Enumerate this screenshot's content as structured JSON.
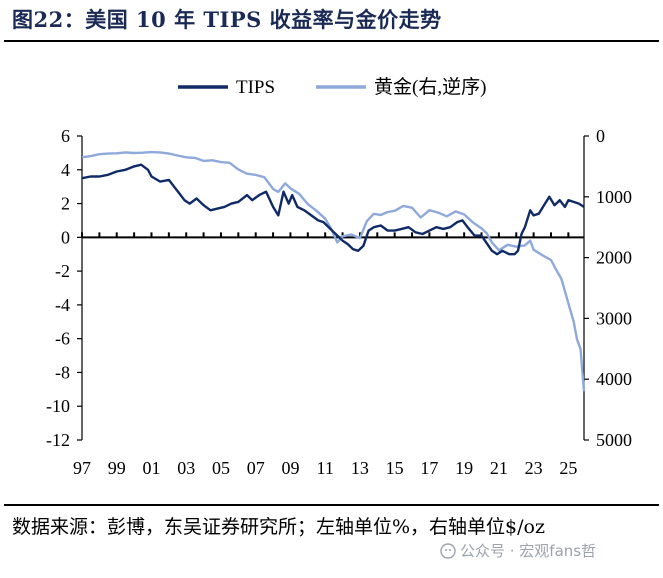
{
  "title": "图22：美国 10 年 TIPS 收益率与金价走势",
  "source_line": "数据来源：彭博，东吴证券研究所；左轴单位%，右轴单位$/oz",
  "watermark": "公众号 · 宏观fans哲",
  "colors": {
    "tips": "#0f2a66",
    "gold": "#8ea9da",
    "title": "#1a2a55"
  },
  "chart_data": {
    "type": "line",
    "legend": [
      "TIPS",
      "黄金(右,逆序)"
    ],
    "legend_position": "top-right",
    "x_ticks": [
      "97",
      "99",
      "01",
      "03",
      "05",
      "07",
      "09",
      "11",
      "13",
      "15",
      "17",
      "19",
      "21",
      "23",
      "25"
    ],
    "x_range": [
      1997,
      2025.9
    ],
    "left_axis": {
      "min": -12,
      "max": 6,
      "ticks": [
        6,
        4,
        2,
        0,
        -2,
        -4,
        -6,
        -8,
        -10,
        -12
      ],
      "unit": "%"
    },
    "right_axis": {
      "min": 0,
      "max": 5000,
      "inverted": true,
      "ticks": [
        0,
        1000,
        2000,
        3000,
        4000,
        5000
      ],
      "unit": "$/oz"
    },
    "series": [
      {
        "name": "TIPS",
        "axis": "left",
        "x": [
          1997.0,
          1997.5,
          1998.0,
          1998.5,
          1999.0,
          1999.5,
          2000.0,
          2000.4,
          2000.8,
          2001.0,
          2001.5,
          2002.0,
          2002.3,
          2002.6,
          2002.9,
          2003.2,
          2003.6,
          2004.0,
          2004.4,
          2004.8,
          2005.2,
          2005.6,
          2006.0,
          2006.5,
          2006.8,
          2007.2,
          2007.6,
          2008.0,
          2008.3,
          2008.6,
          2008.9,
          2009.1,
          2009.4,
          2009.8,
          2010.2,
          2010.6,
          2010.9,
          2011.2,
          2011.5,
          2011.8,
          2012.0,
          2012.3,
          2012.6,
          2012.9,
          2013.2,
          2013.5,
          2013.8,
          2014.2,
          2014.6,
          2015.0,
          2015.4,
          2015.8,
          2016.2,
          2016.6,
          2017.0,
          2017.4,
          2017.8,
          2018.2,
          2018.6,
          2018.9,
          2019.2,
          2019.6,
          2020.0,
          2020.2,
          2020.4,
          2020.6,
          2020.9,
          2021.2,
          2021.6,
          2021.9,
          2022.1,
          2022.3,
          2022.5,
          2022.8,
          2023.0,
          2023.3,
          2023.6,
          2023.9,
          2024.2,
          2024.5,
          2024.8,
          2025.0,
          2025.3,
          2025.6,
          2025.9
        ],
        "values": [
          3.5,
          3.6,
          3.6,
          3.7,
          3.9,
          4.0,
          4.2,
          4.3,
          4.0,
          3.6,
          3.3,
          3.4,
          3.0,
          2.6,
          2.2,
          2.0,
          2.3,
          1.9,
          1.6,
          1.7,
          1.8,
          2.0,
          2.1,
          2.5,
          2.2,
          2.5,
          2.7,
          1.8,
          1.3,
          2.7,
          2.0,
          2.5,
          1.8,
          1.6,
          1.3,
          1.0,
          0.9,
          0.6,
          0.3,
          0.0,
          -0.2,
          -0.4,
          -0.7,
          -0.8,
          -0.5,
          0.4,
          0.6,
          0.7,
          0.4,
          0.4,
          0.5,
          0.6,
          0.3,
          0.2,
          0.4,
          0.6,
          0.5,
          0.6,
          0.9,
          1.0,
          0.6,
          0.1,
          0.1,
          -0.2,
          -0.5,
          -0.8,
          -1.0,
          -0.8,
          -1.0,
          -1.0,
          -0.8,
          0.2,
          0.6,
          1.6,
          1.3,
          1.4,
          1.9,
          2.4,
          1.9,
          2.2,
          1.8,
          2.2,
          2.1,
          2.0,
          1.8
        ]
      },
      {
        "name": "黄金(右,逆序)",
        "axis": "right",
        "x": [
          1997.0,
          1997.5,
          1998.0,
          1998.5,
          1999.0,
          1999.5,
          2000.0,
          2000.5,
          2001.0,
          2001.5,
          2002.0,
          2002.5,
          2003.0,
          2003.5,
          2004.0,
          2004.5,
          2005.0,
          2005.5,
          2006.0,
          2006.5,
          2007.0,
          2007.5,
          2008.0,
          2008.3,
          2008.7,
          2009.0,
          2009.5,
          2010.0,
          2010.5,
          2011.0,
          2011.3,
          2011.7,
          2012.0,
          2012.5,
          2013.0,
          2013.4,
          2013.8,
          2014.2,
          2014.6,
          2015.0,
          2015.5,
          2016.0,
          2016.5,
          2017.0,
          2017.5,
          2018.0,
          2018.5,
          2019.0,
          2019.5,
          2020.0,
          2020.3,
          2020.6,
          2021.0,
          2021.5,
          2022.0,
          2022.5,
          2022.8,
          2023.0,
          2023.5,
          2024.0,
          2024.3,
          2024.6,
          2024.9,
          2025.1,
          2025.3,
          2025.5,
          2025.7,
          2025.9
        ],
        "values": [
          350,
          330,
          300,
          290,
          285,
          270,
          280,
          275,
          265,
          270,
          290,
          320,
          350,
          360,
          410,
          400,
          430,
          440,
          550,
          620,
          640,
          680,
          870,
          920,
          780,
          860,
          950,
          1120,
          1230,
          1360,
          1500,
          1750,
          1650,
          1620,
          1680,
          1400,
          1280,
          1300,
          1250,
          1230,
          1150,
          1180,
          1340,
          1220,
          1260,
          1320,
          1240,
          1290,
          1420,
          1520,
          1600,
          1750,
          1880,
          1790,
          1820,
          1800,
          1720,
          1870,
          1960,
          2040,
          2200,
          2350,
          2650,
          2850,
          3050,
          3350,
          3500,
          4200
        ]
      }
    ]
  }
}
